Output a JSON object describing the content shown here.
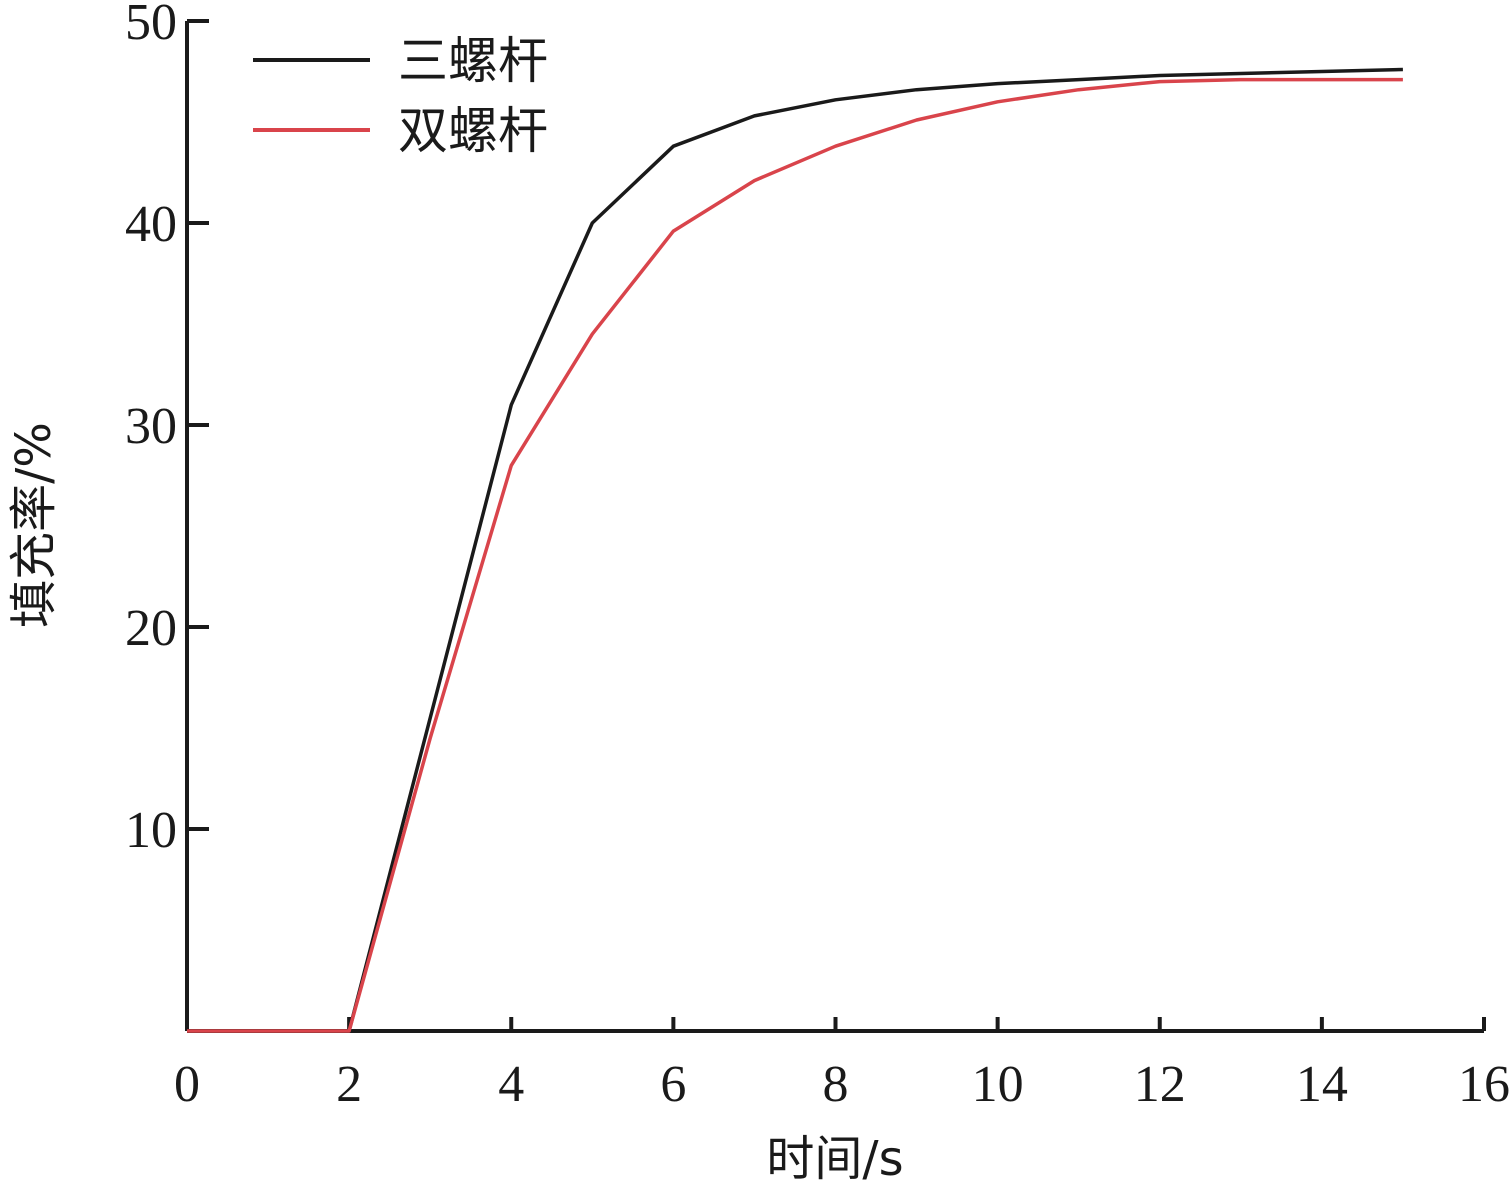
{
  "chart_data": {
    "type": "line",
    "title": "",
    "xlabel": "时间/s",
    "ylabel": "填充率/%",
    "xlim": [
      0,
      16
    ],
    "ylim": [
      0,
      50
    ],
    "x_ticks": [
      0,
      2,
      4,
      6,
      8,
      10,
      12,
      14,
      16
    ],
    "y_ticks": [
      10,
      20,
      30,
      40,
      50
    ],
    "grid": false,
    "legend_position": "top-left",
    "series": [
      {
        "name": "三螺杆",
        "color": "#1a1a1a",
        "x": [
          0,
          2,
          3,
          4,
          5,
          6,
          7,
          8,
          9,
          10,
          11,
          12,
          13,
          14,
          15
        ],
        "y": [
          0,
          0,
          15.5,
          31,
          40,
          43.8,
          45.3,
          46.1,
          46.6,
          46.9,
          47.1,
          47.3,
          47.4,
          47.5,
          47.6
        ]
      },
      {
        "name": "双螺杆",
        "color": "#d9444b",
        "x": [
          0,
          2,
          3,
          4,
          5,
          6,
          7,
          8,
          9,
          10,
          11,
          12,
          13,
          14,
          15
        ],
        "y": [
          0,
          0,
          14.5,
          28,
          34.5,
          39.6,
          42.1,
          43.8,
          45.1,
          46.0,
          46.6,
          47.0,
          47.1,
          47.1,
          47.1
        ]
      }
    ]
  }
}
